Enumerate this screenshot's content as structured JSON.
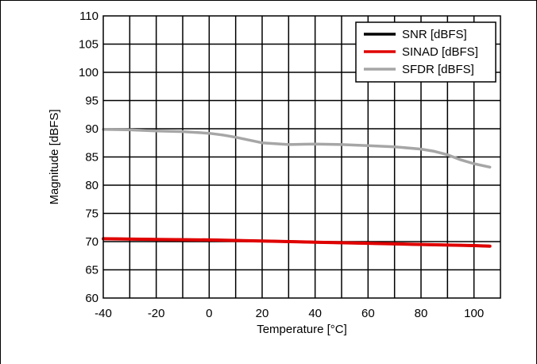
{
  "chart_data": {
    "type": "line",
    "xlabel": "Temperature [°C]",
    "ylabel": "Magnitude [dBFS]",
    "xlim": [
      -40,
      110
    ],
    "ylim": [
      60,
      110
    ],
    "xticks": [
      -40,
      -20,
      0,
      20,
      40,
      60,
      80,
      100
    ],
    "yticks": [
      60,
      65,
      70,
      75,
      80,
      85,
      90,
      95,
      100,
      105,
      110
    ],
    "grid": true,
    "legend_position": "top-right",
    "series": [
      {
        "name": "SNR [dBFS]",
        "color": "#000000",
        "x": [
          -40,
          -20,
          0,
          20,
          40,
          60,
          80,
          100,
          106
        ],
        "y": [
          70.5,
          70.4,
          70.3,
          70.1,
          69.9,
          69.7,
          69.5,
          69.3,
          69.2
        ]
      },
      {
        "name": "SINAD [dBFS]",
        "color": "#e00000",
        "x": [
          -40,
          -20,
          0,
          20,
          40,
          60,
          80,
          100,
          106
        ],
        "y": [
          70.5,
          70.4,
          70.3,
          70.1,
          69.9,
          69.7,
          69.5,
          69.3,
          69.2
        ]
      },
      {
        "name": "SFDR [dBFS]",
        "color": "#a6a6a6",
        "x": [
          -40,
          -30,
          -20,
          -10,
          0,
          5,
          10,
          15,
          20,
          30,
          40,
          50,
          60,
          70,
          80,
          85,
          90,
          95,
          100,
          106
        ],
        "y": [
          89.9,
          89.8,
          89.6,
          89.5,
          89.2,
          88.9,
          88.5,
          88.0,
          87.5,
          87.2,
          87.3,
          87.2,
          87.0,
          86.8,
          86.4,
          86.0,
          85.4,
          84.5,
          83.8,
          83.2
        ]
      }
    ]
  }
}
